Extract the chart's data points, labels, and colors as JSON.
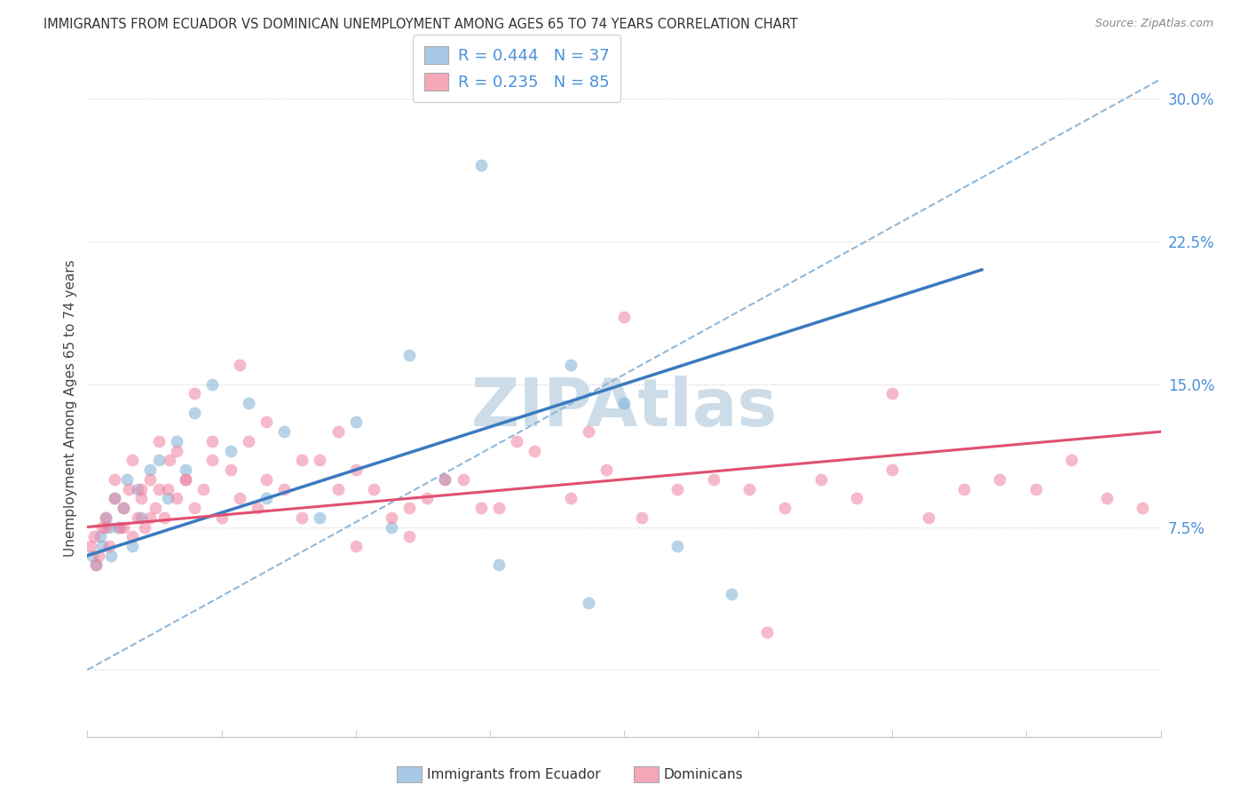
{
  "title": "IMMIGRANTS FROM ECUADOR VS DOMINICAN UNEMPLOYMENT AMONG AGES 65 TO 74 YEARS CORRELATION CHART",
  "source": "Source: ZipAtlas.com",
  "xmin": 0.0,
  "xmax": 60.0,
  "ymin": -3.5,
  "ymax": 31.0,
  "ylabel_ticks": [
    0.0,
    7.5,
    15.0,
    22.5,
    30.0
  ],
  "ylabel_tick_labels": [
    "",
    "7.5%",
    "15.0%",
    "22.5%",
    "30.0%"
  ],
  "legend1_color": "#a8c8e8",
  "legend2_color": "#f4a8b8",
  "series1_color": "#7ab0d4",
  "series2_color": "#f080a0",
  "trendline1_color": "#3a7abf",
  "trendline2_color": "#e05070",
  "diag_line_color": "#90b8d8",
  "background_color": "#ffffff",
  "watermark_color": "#ccdce8",
  "legend1_text": "R = 0.444   N = 37",
  "legend2_text": "R = 0.235   N = 85",
  "legend_text_color": "#4a90d9",
  "bottom_legend1": "Immigrants from Ecuador",
  "bottom_legend2": "Dominicans",
  "ylabel_label": "Unemployment Among Ages 65 to 74 years",
  "ec_x": [
    0.3,
    0.5,
    0.7,
    0.8,
    1.0,
    1.2,
    1.3,
    1.5,
    1.7,
    2.0,
    2.2,
    2.5,
    2.8,
    3.0,
    3.5,
    4.0,
    4.5,
    5.0,
    5.5,
    6.0,
    7.0,
    8.0,
    9.0,
    10.0,
    11.0,
    13.0,
    15.0,
    17.0,
    18.0,
    20.0,
    23.0,
    28.0,
    30.0,
    33.0,
    36.0,
    22.0,
    27.0
  ],
  "ec_y": [
    6.0,
    5.5,
    7.0,
    6.5,
    8.0,
    7.5,
    6.0,
    9.0,
    7.5,
    8.5,
    10.0,
    6.5,
    9.5,
    8.0,
    10.5,
    11.0,
    9.0,
    12.0,
    10.5,
    13.5,
    15.0,
    11.5,
    14.0,
    9.0,
    12.5,
    8.0,
    13.0,
    7.5,
    16.5,
    10.0,
    5.5,
    3.5,
    14.0,
    6.5,
    4.0,
    26.5,
    16.0
  ],
  "dom_x": [
    0.2,
    0.4,
    0.6,
    0.8,
    1.0,
    1.2,
    1.5,
    1.8,
    2.0,
    2.3,
    2.5,
    2.8,
    3.0,
    3.2,
    3.5,
    3.8,
    4.0,
    4.3,
    4.6,
    5.0,
    5.5,
    6.0,
    6.5,
    7.0,
    7.5,
    8.0,
    8.5,
    9.0,
    9.5,
    10.0,
    11.0,
    12.0,
    13.0,
    14.0,
    15.0,
    17.0,
    19.0,
    21.0,
    23.0,
    25.0,
    27.0,
    29.0,
    31.0,
    33.0,
    35.0,
    37.0,
    39.0,
    41.0,
    43.0,
    45.0,
    47.0,
    49.0,
    51.0,
    53.0,
    55.0,
    57.0,
    59.0,
    30.0,
    24.0,
    20.0,
    18.0,
    16.0,
    14.0,
    12.0,
    10.0,
    8.5,
    7.0,
    6.0,
    5.5,
    5.0,
    4.5,
    4.0,
    3.5,
    3.0,
    2.5,
    2.0,
    1.5,
    1.0,
    0.5,
    28.0,
    22.0,
    18.0,
    15.0,
    38.0,
    45.0
  ],
  "dom_y": [
    6.5,
    7.0,
    6.0,
    7.5,
    8.0,
    6.5,
    9.0,
    7.5,
    8.5,
    9.5,
    7.0,
    8.0,
    9.0,
    7.5,
    10.0,
    8.5,
    9.5,
    8.0,
    11.0,
    9.0,
    10.0,
    8.5,
    9.5,
    11.0,
    8.0,
    10.5,
    9.0,
    12.0,
    8.5,
    10.0,
    9.5,
    8.0,
    11.0,
    9.5,
    10.5,
    8.0,
    9.0,
    10.0,
    8.5,
    11.5,
    9.0,
    10.5,
    8.0,
    9.5,
    10.0,
    9.5,
    8.5,
    10.0,
    9.0,
    10.5,
    8.0,
    9.5,
    10.0,
    9.5,
    11.0,
    9.0,
    8.5,
    18.5,
    12.0,
    10.0,
    8.5,
    9.5,
    12.5,
    11.0,
    13.0,
    16.0,
    12.0,
    14.5,
    10.0,
    11.5,
    9.5,
    12.0,
    8.0,
    9.5,
    11.0,
    7.5,
    10.0,
    7.5,
    5.5,
    12.5,
    8.5,
    7.0,
    6.5,
    2.0,
    14.5
  ]
}
